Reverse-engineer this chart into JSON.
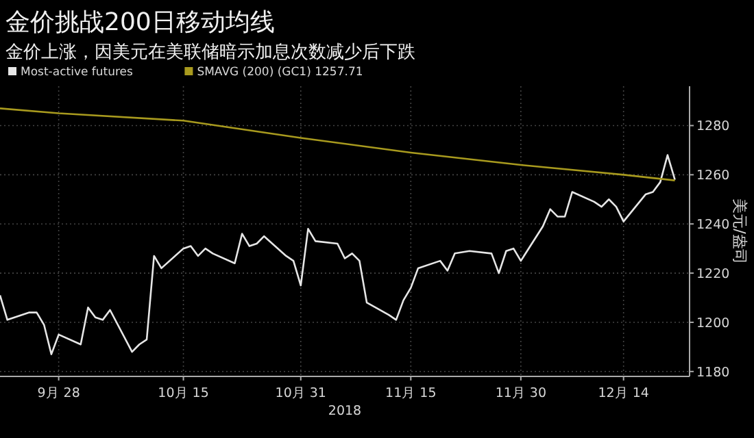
{
  "chart_data": {
    "type": "line",
    "title": "金价挑战200日移动均线",
    "subtitle": "金价上涨，因美元在美联储暗示加息次数减少后下跌",
    "xlabel": "2018",
    "ylabel": "美元/盎司",
    "x": [
      "2018-09-20",
      "2018-09-21",
      "2018-09-24",
      "2018-09-25",
      "2018-09-26",
      "2018-09-27",
      "2018-09-28",
      "2018-10-01",
      "2018-10-02",
      "2018-10-03",
      "2018-10-04",
      "2018-10-05",
      "2018-10-08",
      "2018-10-09",
      "2018-10-10",
      "2018-10-11",
      "2018-10-12",
      "2018-10-15",
      "2018-10-16",
      "2018-10-17",
      "2018-10-18",
      "2018-10-19",
      "2018-10-22",
      "2018-10-23",
      "2018-10-24",
      "2018-10-25",
      "2018-10-26",
      "2018-10-29",
      "2018-10-30",
      "2018-10-31",
      "2018-11-01",
      "2018-11-02",
      "2018-11-05",
      "2018-11-06",
      "2018-11-07",
      "2018-11-08",
      "2018-11-09",
      "2018-11-12",
      "2018-11-13",
      "2018-11-14",
      "2018-11-15",
      "2018-11-16",
      "2018-11-19",
      "2018-11-20",
      "2018-11-21",
      "2018-11-23",
      "2018-11-26",
      "2018-11-27",
      "2018-11-28",
      "2018-11-29",
      "2018-11-30",
      "2018-12-03",
      "2018-12-04",
      "2018-12-05",
      "2018-12-06",
      "2018-12-07",
      "2018-12-10",
      "2018-12-11",
      "2018-12-12",
      "2018-12-13",
      "2018-12-14",
      "2018-12-17",
      "2018-12-18",
      "2018-12-19",
      "2018-12-20",
      "2018-12-21"
    ],
    "series": [
      {
        "name": "Most-active futures",
        "color": "#e6e6e6",
        "values": [
          1211,
          1201,
          1204,
          1204,
          1199,
          1187,
          1195,
          1191,
          1206,
          1202,
          1201,
          1205,
          1188,
          1191,
          1193,
          1227,
          1222,
          1230,
          1231,
          1227,
          1230,
          1228,
          1224,
          1236,
          1231,
          1232,
          1235,
          1227,
          1225,
          1215,
          1238,
          1233,
          1232,
          1226,
          1228,
          1225,
          1208,
          1203,
          1201,
          1209,
          1214,
          1222,
          1225,
          1221,
          1228,
          1229,
          1228,
          1220,
          1229,
          1230,
          1225,
          1239,
          1246,
          1243,
          1243,
          1253,
          1249,
          1247,
          1250,
          1247,
          1241,
          1252,
          1253,
          1257,
          1268,
          1258
        ]
      },
      {
        "name": "SMAVG (200) (GC1) 1257.71",
        "color": "#a89a1e",
        "x": [
          "2018-09-20",
          "2018-09-28",
          "2018-10-15",
          "2018-10-31",
          "2018-11-15",
          "2018-11-30",
          "2018-12-14",
          "2018-12-21"
        ],
        "values": [
          1287,
          1285,
          1282,
          1275,
          1269,
          1264,
          1260,
          1257.71
        ]
      }
    ],
    "xlim": [
      "2018-09-20",
      "2018-12-23"
    ],
    "xticks": [
      {
        "value": "2018-09-28",
        "label": "9月 28"
      },
      {
        "value": "2018-10-15",
        "label": "10月 15"
      },
      {
        "value": "2018-10-31",
        "label": "10月 31"
      },
      {
        "value": "2018-11-15",
        "label": "11月 15"
      },
      {
        "value": "2018-11-30",
        "label": "11月 30"
      },
      {
        "value": "2018-12-14",
        "label": "12月 14"
      }
    ],
    "ylim": [
      1178,
      1296
    ],
    "yticks": [
      1180,
      1200,
      1220,
      1240,
      1260,
      1280
    ],
    "grid": true,
    "legend": "top left",
    "marker": "none",
    "line_style": "solid"
  }
}
